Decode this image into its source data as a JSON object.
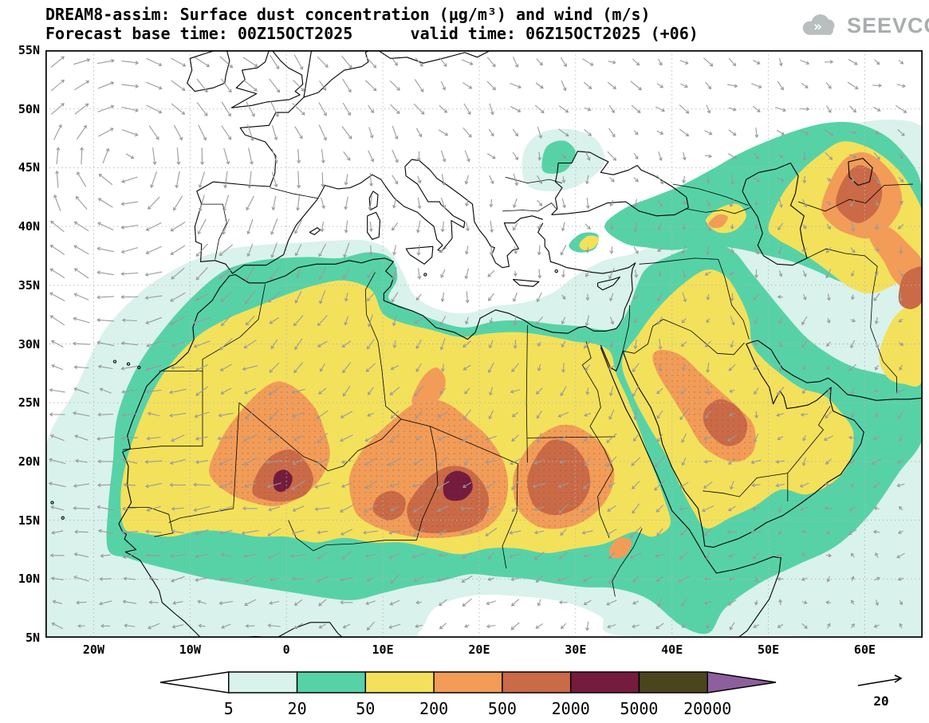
{
  "header": {
    "title_line1": "DREAM8-assim: Surface dust concentration (µg/m³) and wind (m/s)",
    "title_line2": "Forecast base time: 00Z15OCT2025      valid time: 06Z15OCT2025 (+06)",
    "logo_text": "SEEVCCC"
  },
  "chart_data": {
    "type": "heatmap",
    "title": "DREAM8-assim: Surface dust concentration (µg/m³) and wind (m/s)",
    "model": "DREAM8-assim",
    "variable": "Surface dust concentration and wind",
    "units_concentration": "µg/m³",
    "units_wind": "m/s",
    "forecast_base_time": "00Z15OCT2025",
    "valid_time": "06Z15OCT2025",
    "lead": "+06",
    "x_axis": {
      "label": "longitude",
      "tick_labels": [
        "20W",
        "10W",
        "0",
        "10E",
        "20E",
        "30E",
        "40E",
        "50E",
        "60E"
      ],
      "tick_lons": [
        -20,
        -10,
        0,
        10,
        20,
        30,
        40,
        50,
        60
      ],
      "range": [
        -25,
        66
      ]
    },
    "y_axis": {
      "label": "latitude",
      "tick_labels": [
        "5N",
        "10N",
        "15N",
        "20N",
        "25N",
        "30N",
        "35N",
        "40N",
        "45N",
        "50N",
        "55N"
      ],
      "tick_lats": [
        5,
        10,
        15,
        20,
        25,
        30,
        35,
        40,
        45,
        50,
        55
      ],
      "range": [
        5,
        55
      ]
    },
    "grid": {
      "lat_step_deg": 5,
      "lon_step_deg": 10,
      "style": "dotted"
    },
    "colorbar": {
      "levels": [
        5,
        20,
        50,
        200,
        500,
        2000,
        5000,
        20000
      ],
      "labels": [
        "5",
        "20",
        "50",
        "200",
        "500",
        "2000",
        "5000",
        "20000"
      ],
      "segment_colors": [
        "#ffffff",
        "#d9f2ec",
        "#57d2a7",
        "#f3e15c",
        "#f29c58",
        "#ca6a47",
        "#741b3e",
        "#4a451d",
        "#8d5f9e"
      ]
    },
    "wind": {
      "reference_value": "20",
      "units": "m/s",
      "arrow_color": "#9a9a9a"
    },
    "dust_maxima_readout": [
      {
        "lon": -0.5,
        "lat": 18.5,
        "concentration_ug_m3": "2000-5000"
      },
      {
        "lon": 17.5,
        "lat": 18.0,
        "concentration_ug_m3": "2000-5000"
      },
      {
        "lon": 28.0,
        "lat": 18.5,
        "concentration_ug_m3": "500-2000"
      },
      {
        "lon": 10.5,
        "lat": 16.0,
        "concentration_ug_m3": "500-2000"
      },
      {
        "lon": 45.5,
        "lat": 23.5,
        "concentration_ug_m3": "500-2000"
      },
      {
        "lon": 59.0,
        "lat": 42.5,
        "concentration_ug_m3": "500-2000"
      },
      {
        "lon": 64.5,
        "lat": 34.5,
        "concentration_ug_m3": "500-2000"
      }
    ]
  }
}
